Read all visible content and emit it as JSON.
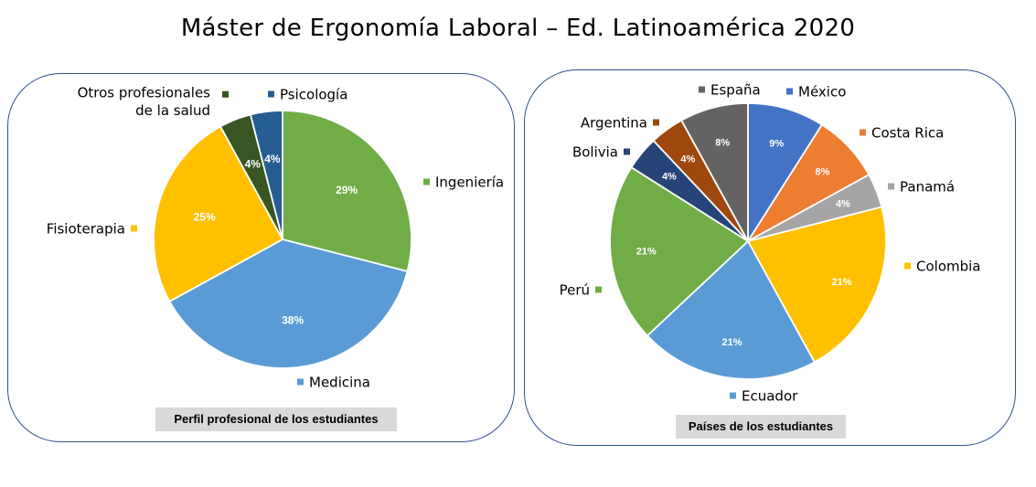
{
  "title": "Máster de Ergonomía Laboral – Ed. Latinoamérica 2020",
  "chart_data": [
    {
      "type": "pie",
      "caption": "Perfil profesional de los estudiantes",
      "slices": [
        {
          "label": "Ingeniería",
          "value": 29,
          "display": "29%",
          "color": "#70ad47",
          "label_lines": [
            "Ingeniería"
          ]
        },
        {
          "label": "Medicina",
          "value": 38,
          "display": "38%",
          "color": "#5b9bd5",
          "label_lines": [
            "Medicina"
          ]
        },
        {
          "label": "Fisioterapia",
          "value": 25,
          "display": "25%",
          "color": "#ffc000",
          "label_lines": [
            "Fisioterapia"
          ]
        },
        {
          "label": "Otros profesionales de la salud",
          "value": 4,
          "display": "4%",
          "color": "#375623",
          "label_lines": [
            "Otros profesionales",
            "de la salud"
          ]
        },
        {
          "label": "Psicología",
          "value": 4,
          "display": "4%",
          "color": "#255e91",
          "label_lines": [
            "Psicología"
          ]
        }
      ]
    },
    {
      "type": "pie",
      "caption": "Países de los estudiantes",
      "slices": [
        {
          "label": "México",
          "value": 9,
          "display": "9%",
          "color": "#4472c4",
          "label_lines": [
            "México"
          ]
        },
        {
          "label": "Costa Rica",
          "value": 8,
          "display": "8%",
          "color": "#ed7d31",
          "label_lines": [
            "Costa Rica"
          ]
        },
        {
          "label": "Panamá",
          "value": 4,
          "display": "4%",
          "color": "#a5a5a5",
          "label_lines": [
            "Panamá"
          ]
        },
        {
          "label": "Colombia",
          "value": 21,
          "display": "21%",
          "color": "#ffc000",
          "label_lines": [
            "Colombia"
          ]
        },
        {
          "label": "Ecuador",
          "value": 21,
          "display": "21%",
          "color": "#5b9bd5",
          "label_lines": [
            "Ecuador"
          ]
        },
        {
          "label": "Perú",
          "value": 21,
          "display": "21%",
          "color": "#70ad47",
          "label_lines": [
            "Perú"
          ]
        },
        {
          "label": "Bolivia",
          "value": 4,
          "display": "4%",
          "color": "#264478",
          "label_lines": [
            "Bolivia"
          ]
        },
        {
          "label": "Argentina",
          "value": 4,
          "display": "4%",
          "color": "#9e480e",
          "label_lines": [
            "Argentina"
          ]
        },
        {
          "label": "España",
          "value": 8,
          "display": "8%",
          "color": "#636363",
          "label_lines": [
            "España"
          ]
        }
      ]
    }
  ]
}
